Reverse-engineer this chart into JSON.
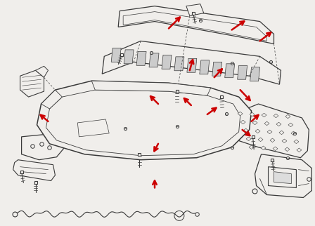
{
  "background_color": "#f0eeeb",
  "line_color": "#3a3a3a",
  "arrow_color": "#cc0000",
  "fig_width": 4.48,
  "fig_height": 3.22,
  "dpi": 100
}
